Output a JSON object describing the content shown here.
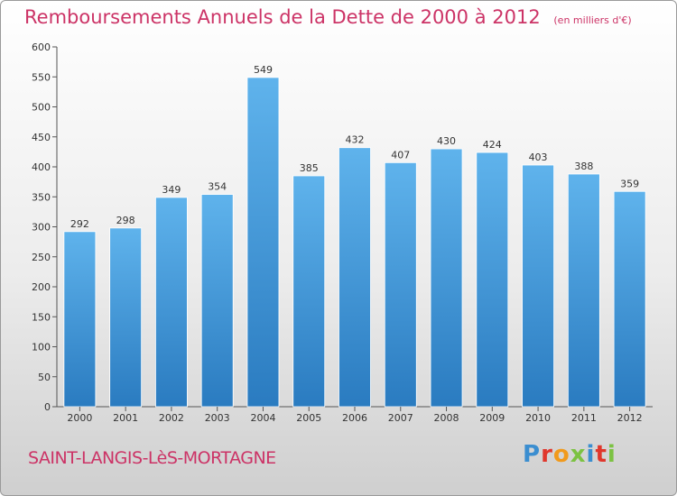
{
  "page": {
    "title": "Remboursements Annuels de la Dette de 2000 à 2012",
    "unit": "(en milliers d'€)",
    "commune": "SAINT-LANGIS-LèS-MORTAGNE",
    "logo": "Proxiti"
  },
  "colors": {
    "title": "#cc3366",
    "bar_top": "#5fb3ec",
    "bar_bottom": "#2a7bc0",
    "logo_letters": [
      "#3b8ed0",
      "#e0372c",
      "#f19a1c",
      "#7cc242",
      "#3b8ed0",
      "#e0372c",
      "#7cc242"
    ]
  },
  "chart_data": {
    "type": "bar",
    "categories": [
      "2000",
      "2001",
      "2002",
      "2003",
      "2004",
      "2005",
      "2006",
      "2007",
      "2008",
      "2009",
      "2010",
      "2011",
      "2012"
    ],
    "values": [
      292,
      298,
      349,
      354,
      549,
      385,
      432,
      407,
      430,
      424,
      403,
      388,
      359
    ],
    "ylim": [
      0,
      600
    ],
    "yticks": [
      0,
      50,
      100,
      150,
      200,
      250,
      300,
      350,
      400,
      450,
      500,
      550,
      600
    ],
    "grid": false,
    "data_labels": true
  }
}
